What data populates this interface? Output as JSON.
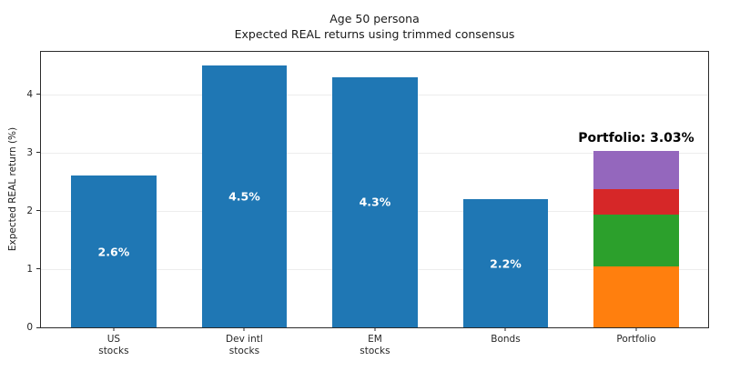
{
  "figure": {
    "title_line1": "Age 50 persona",
    "title_line2": "Expected REAL returns using trimmed consensus"
  },
  "chart_data": {
    "type": "bar",
    "title": "Age 50 persona",
    "subtitle": "Expected REAL returns using trimmed consensus",
    "xlabel": "",
    "ylabel": "Expected REAL return (%)",
    "ylim": [
      0,
      4.73
    ],
    "yticks": [
      0,
      1,
      2,
      3,
      4
    ],
    "grid": "horizontal",
    "grid_color": "#ededed",
    "axis_color": "#2b2b2b",
    "bar_label_color": "#ffffff",
    "categories": [
      "US\nstocks",
      "Dev intl\nstocks",
      "EM\nstocks",
      "Bonds",
      "Portfolio"
    ],
    "bars": [
      {
        "category": "US\nstocks",
        "value": 2.6,
        "bar_label": "2.6%",
        "color": "#1f77b4"
      },
      {
        "category": "Dev intl\nstocks",
        "value": 4.5,
        "bar_label": "4.5%",
        "color": "#1f77b4"
      },
      {
        "category": "EM\nstocks",
        "value": 4.3,
        "bar_label": "4.3%",
        "color": "#1f77b4"
      },
      {
        "category": "Bonds",
        "value": 2.2,
        "bar_label": "2.2%",
        "color": "#1f77b4"
      },
      {
        "category": "Portfolio",
        "value": 3.03,
        "annotation": "Portfolio: 3.03%",
        "segments": [
          {
            "name": "US stocks contribution",
            "value": 1.04,
            "color": "#ff7f0e"
          },
          {
            "name": "Dev intl stocks contribution",
            "value": 0.9,
            "color": "#2ca02c"
          },
          {
            "name": "EM stocks contribution",
            "value": 0.43,
            "color": "#d62728"
          },
          {
            "name": "Bonds contribution",
            "value": 0.66,
            "color": "#9467bd"
          }
        ]
      }
    ],
    "layout": {
      "first_center_pct": 10.9,
      "center_step_pct": 19.58,
      "bar_width_pct": 12.8
    }
  }
}
